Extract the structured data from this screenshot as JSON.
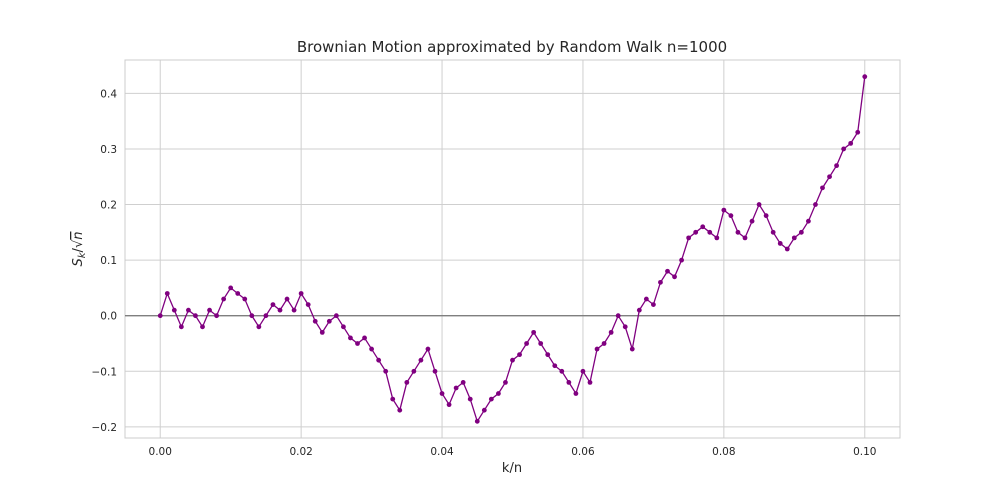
{
  "chart_data": {
    "type": "line",
    "title": "Brownian Motion approximated by Random Walk n=1000",
    "xlabel": "k/n",
    "ylabel_main": "S",
    "ylabel_sub": "k",
    "ylabel_sep": "/",
    "ylabel_radical": "√",
    "ylabel_var": "n",
    "xlim": [
      -0.005,
      0.105
    ],
    "ylim": [
      -0.22,
      0.46
    ],
    "xticks": [
      0.0,
      0.02,
      0.04,
      0.06,
      0.08,
      0.1
    ],
    "xtick_labels": [
      "0.00",
      "0.02",
      "0.04",
      "0.06",
      "0.08",
      "0.10"
    ],
    "yticks": [
      -0.2,
      -0.1,
      0.0,
      0.1,
      0.2,
      0.3,
      0.4
    ],
    "ytick_labels": [
      "−0.2",
      "−0.1",
      "0.0",
      "0.1",
      "0.2",
      "0.3",
      "0.4"
    ],
    "grid": true,
    "horizontal_reference_line": 0.0,
    "series_color": "#800080",
    "marker": "circle",
    "series": [
      {
        "name": "",
        "x": [
          0.0,
          0.001,
          0.002,
          0.003,
          0.004,
          0.005,
          0.006,
          0.007,
          0.008,
          0.009,
          0.01,
          0.011,
          0.012,
          0.013,
          0.014,
          0.015,
          0.016,
          0.017,
          0.018,
          0.019,
          0.02,
          0.021,
          0.022,
          0.023,
          0.024,
          0.025,
          0.026,
          0.027,
          0.028,
          0.029,
          0.03,
          0.031,
          0.032,
          0.033,
          0.034,
          0.035,
          0.036,
          0.037,
          0.038,
          0.039,
          0.04,
          0.041,
          0.042,
          0.043,
          0.044,
          0.045,
          0.046,
          0.047,
          0.048,
          0.049,
          0.05,
          0.051,
          0.052,
          0.053,
          0.054,
          0.055,
          0.056,
          0.057,
          0.058,
          0.059,
          0.06,
          0.061,
          0.062,
          0.063,
          0.064,
          0.065,
          0.066,
          0.067,
          0.068,
          0.069,
          0.07,
          0.071,
          0.072,
          0.073,
          0.074,
          0.075,
          0.076,
          0.077,
          0.078,
          0.079,
          0.08,
          0.081,
          0.082,
          0.083,
          0.084,
          0.085,
          0.086,
          0.087,
          0.088,
          0.089,
          0.09,
          0.091,
          0.092,
          0.093,
          0.094,
          0.095,
          0.096,
          0.097,
          0.098,
          0.099,
          0.1
        ],
        "y": [
          0.0,
          0.04,
          0.01,
          -0.02,
          0.01,
          0.0,
          -0.02,
          0.01,
          0.0,
          0.03,
          0.05,
          0.04,
          0.03,
          0.0,
          -0.02,
          0.0,
          0.02,
          0.01,
          0.03,
          0.01,
          0.04,
          0.02,
          -0.01,
          -0.03,
          -0.01,
          0.0,
          -0.02,
          -0.04,
          -0.05,
          -0.04,
          -0.06,
          -0.08,
          -0.1,
          -0.15,
          -0.17,
          -0.12,
          -0.1,
          -0.08,
          -0.06,
          -0.1,
          -0.14,
          -0.16,
          -0.13,
          -0.12,
          -0.15,
          -0.19,
          -0.17,
          -0.15,
          -0.14,
          -0.12,
          -0.08,
          -0.07,
          -0.05,
          -0.03,
          -0.05,
          -0.07,
          -0.09,
          -0.1,
          -0.12,
          -0.14,
          -0.1,
          -0.12,
          -0.06,
          -0.05,
          -0.03,
          0.0,
          -0.02,
          -0.06,
          0.01,
          0.03,
          0.02,
          0.06,
          0.08,
          0.07,
          0.1,
          0.14,
          0.15,
          0.16,
          0.15,
          0.14,
          0.19,
          0.18,
          0.15,
          0.14,
          0.17,
          0.2,
          0.18,
          0.15,
          0.13,
          0.12,
          0.14,
          0.15,
          0.17,
          0.2,
          0.23,
          0.25,
          0.27,
          0.3,
          0.31,
          0.33,
          0.43
        ]
      }
    ]
  }
}
